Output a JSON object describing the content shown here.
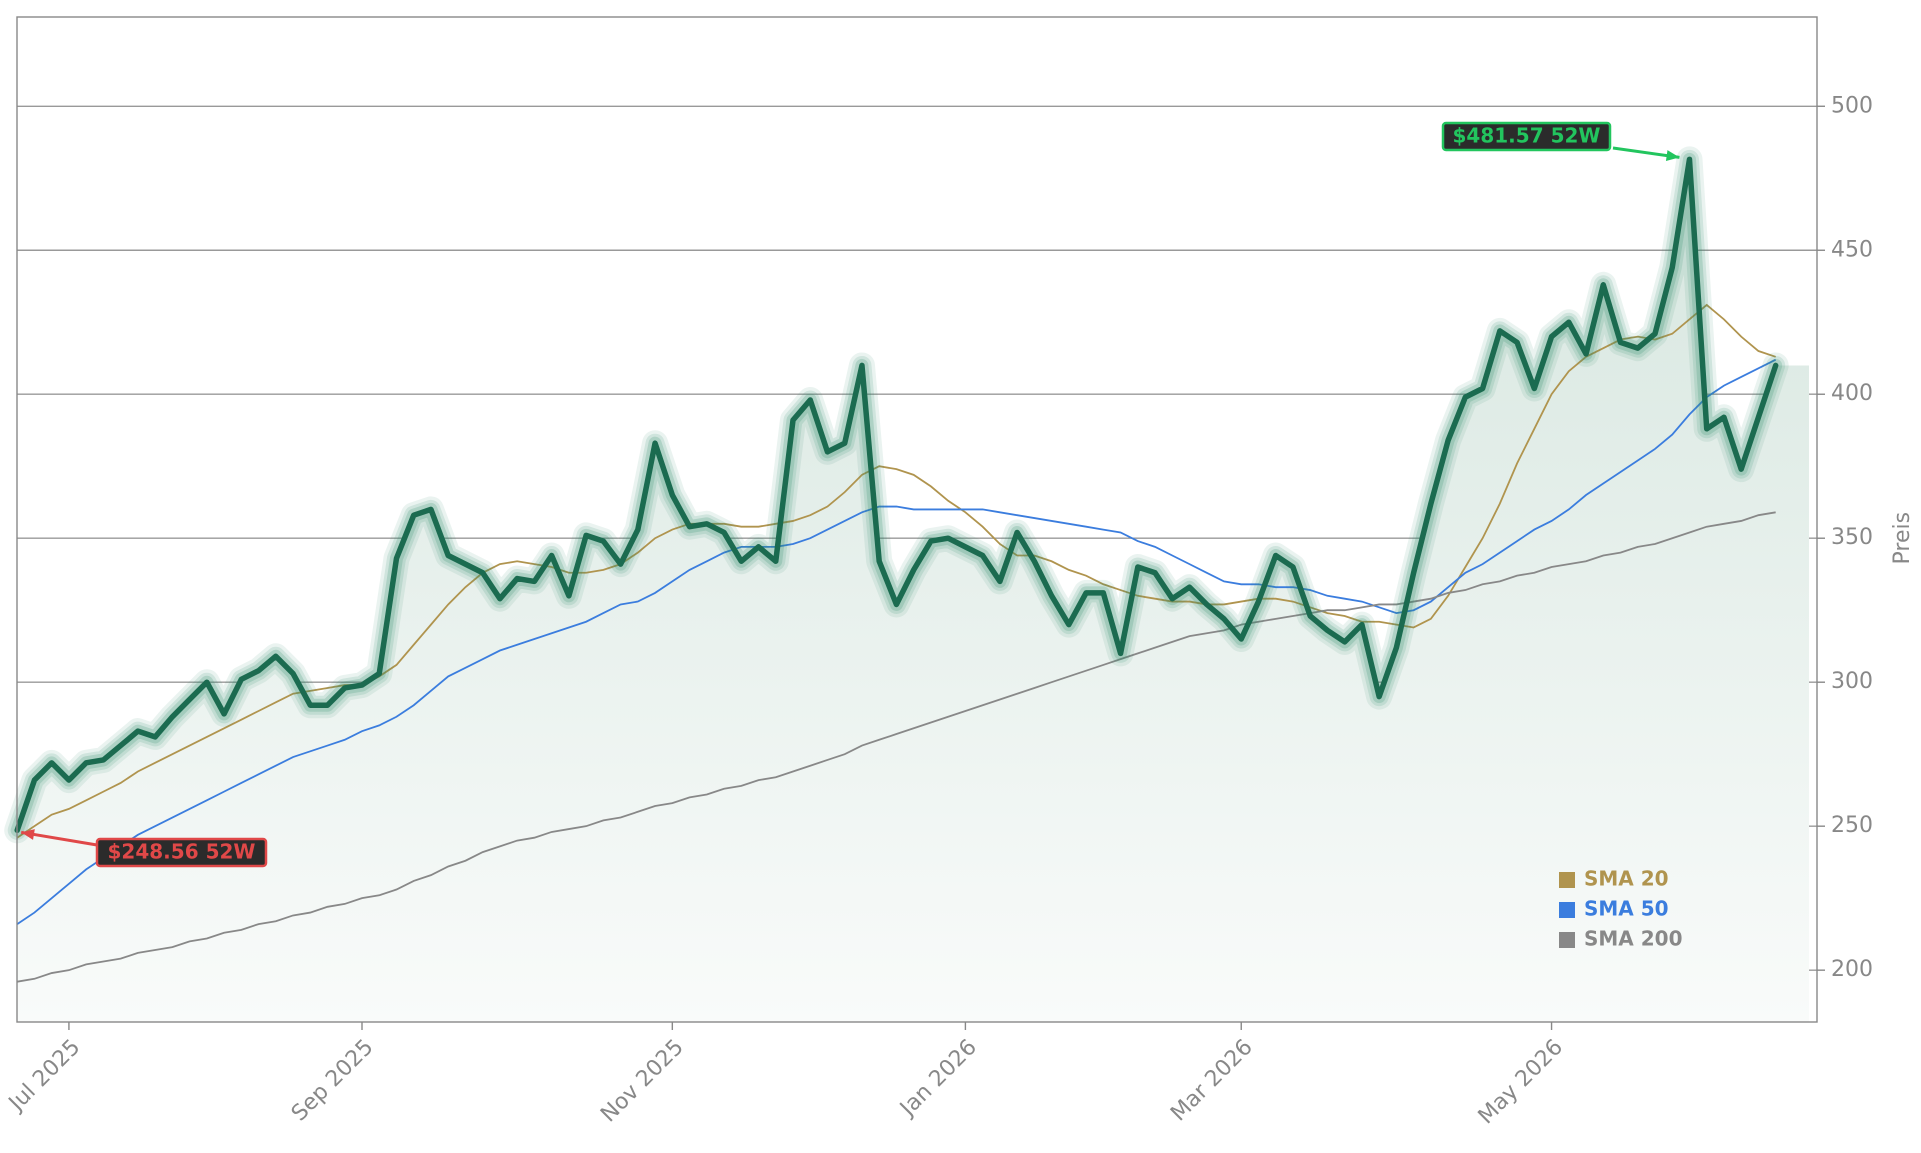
{
  "chart_data": {
    "type": "line",
    "categories": [
      null,
      null,
      null,
      "Jul 2025",
      null,
      null,
      null,
      null,
      null,
      null,
      null,
      null,
      null,
      null,
      null,
      null,
      null,
      null,
      null,
      null,
      "Sep 2025",
      null,
      null,
      null,
      null,
      null,
      null,
      null,
      null,
      null,
      null,
      null,
      null,
      null,
      null,
      null,
      null,
      null,
      "Nov 2025",
      null,
      null,
      null,
      null,
      null,
      null,
      null,
      null,
      null,
      null,
      null,
      null,
      null,
      null,
      null,
      null,
      "Jan 2026",
      null,
      null,
      null,
      null,
      null,
      null,
      null,
      null,
      null,
      null,
      null,
      null,
      null,
      null,
      null,
      "Mar 2026",
      null,
      null,
      null,
      null,
      null,
      null,
      null,
      null,
      null,
      null,
      null,
      null,
      null,
      null,
      null,
      null,
      null,
      "May 2026",
      null,
      null,
      null,
      null,
      null,
      null,
      null,
      null,
      null,
      null,
      null,
      null,
      null
    ],
    "series": [
      {
        "color": "#1b6b50",
        "values": [
          248.56,
          266,
          272,
          266,
          272,
          273,
          278,
          283,
          281,
          288,
          294,
          300,
          289,
          301,
          304,
          309,
          303,
          292,
          292,
          298,
          299,
          303,
          343,
          358,
          360,
          344,
          341,
          338,
          329,
          336,
          335,
          344,
          330,
          351,
          349,
          341,
          353,
          383,
          365,
          354,
          355,
          352,
          342,
          347,
          342,
          391,
          398,
          380,
          383,
          410,
          342,
          327,
          339,
          349,
          350,
          347,
          344,
          335,
          352,
          342,
          330,
          320,
          331,
          331,
          310,
          340,
          338,
          329,
          333,
          327,
          322,
          315,
          328,
          344,
          340,
          323,
          318,
          314,
          320,
          295,
          312,
          338,
          362,
          384,
          399,
          402,
          422,
          418,
          402,
          420,
          425,
          414,
          438,
          418,
          416,
          421,
          444,
          481.57,
          388,
          392,
          374,
          392,
          410
        ]
      },
      {
        "name": "SMA 20",
        "color": "#b0944e",
        "values": [
          246,
          250,
          254,
          256,
          259,
          262,
          265,
          269,
          272,
          275,
          278,
          281,
          284,
          287,
          290,
          293,
          296,
          297,
          298,
          299,
          299,
          302,
          306,
          313,
          320,
          327,
          333,
          338,
          341,
          342,
          341,
          340,
          338,
          338,
          339,
          341,
          345,
          350,
          353,
          355,
          355,
          355,
          354,
          354,
          355,
          356,
          358,
          361,
          366,
          372,
          375,
          374,
          372,
          368,
          363,
          359,
          354,
          348,
          344,
          344,
          342,
          339,
          337,
          334,
          332,
          330,
          329,
          328,
          328,
          327,
          327,
          328,
          329,
          329,
          328,
          326,
          324,
          323,
          321,
          321,
          320,
          319,
          322,
          330,
          340,
          350,
          362,
          376,
          388,
          400,
          408,
          413,
          416,
          419,
          420,
          419,
          421,
          426,
          431,
          426,
          420,
          415,
          413
        ]
      },
      {
        "name": "SMA 50",
        "color": "#3b7dde",
        "values": [
          216,
          220,
          225,
          230,
          235,
          239,
          243,
          247,
          250,
          253,
          256,
          259,
          262,
          265,
          268,
          271,
          274,
          276,
          278,
          280,
          283,
          285,
          288,
          292,
          297,
          302,
          305,
          308,
          311,
          313,
          315,
          317,
          319,
          321,
          324,
          327,
          328,
          331,
          335,
          339,
          342,
          345,
          347,
          347,
          347,
          348,
          350,
          353,
          356,
          359,
          361,
          361,
          360,
          360,
          360,
          360,
          360,
          359,
          358,
          357,
          356,
          355,
          354,
          353,
          352,
          349,
          347,
          344,
          341,
          338,
          335,
          334,
          334,
          333,
          333,
          332,
          330,
          329,
          328,
          326,
          324,
          325,
          328,
          333,
          338,
          341,
          345,
          349,
          353,
          356,
          360,
          365,
          369,
          373,
          377,
          381,
          386,
          393,
          399,
          403,
          406,
          409,
          412
        ]
      },
      {
        "name": "SMA 200",
        "color": "#888888",
        "values": [
          196,
          197,
          199,
          200,
          202,
          203,
          204,
          206,
          207,
          208,
          210,
          211,
          213,
          214,
          216,
          217,
          219,
          220,
          222,
          223,
          225,
          226,
          228,
          231,
          233,
          236,
          238,
          241,
          243,
          245,
          246,
          248,
          249,
          250,
          252,
          253,
          255,
          257,
          258,
          260,
          261,
          263,
          264,
          266,
          267,
          269,
          271,
          273,
          275,
          278,
          280,
          282,
          284,
          286,
          288,
          290,
          292,
          294,
          296,
          298,
          300,
          302,
          304,
          306,
          308,
          310,
          312,
          314,
          316,
          317,
          318,
          320,
          321,
          322,
          323,
          324,
          325,
          325,
          326,
          327,
          327,
          328,
          329,
          331,
          332,
          334,
          335,
          337,
          338,
          340,
          341,
          342,
          344,
          345,
          347,
          348,
          350,
          352,
          354,
          355,
          356,
          358,
          359
        ]
      }
    ],
    "ylabel": "Preis",
    "ylim": [
      182,
      531
    ],
    "yticks": [
      200,
      250,
      300,
      350,
      400,
      450,
      500
    ],
    "grid": true,
    "legend": "lower right",
    "annotations": [
      {
        "text": "$481.57 52W",
        "color": "#22c55e"
      },
      {
        "text": "$248.56 52W",
        "color": "#e04848"
      }
    ]
  }
}
